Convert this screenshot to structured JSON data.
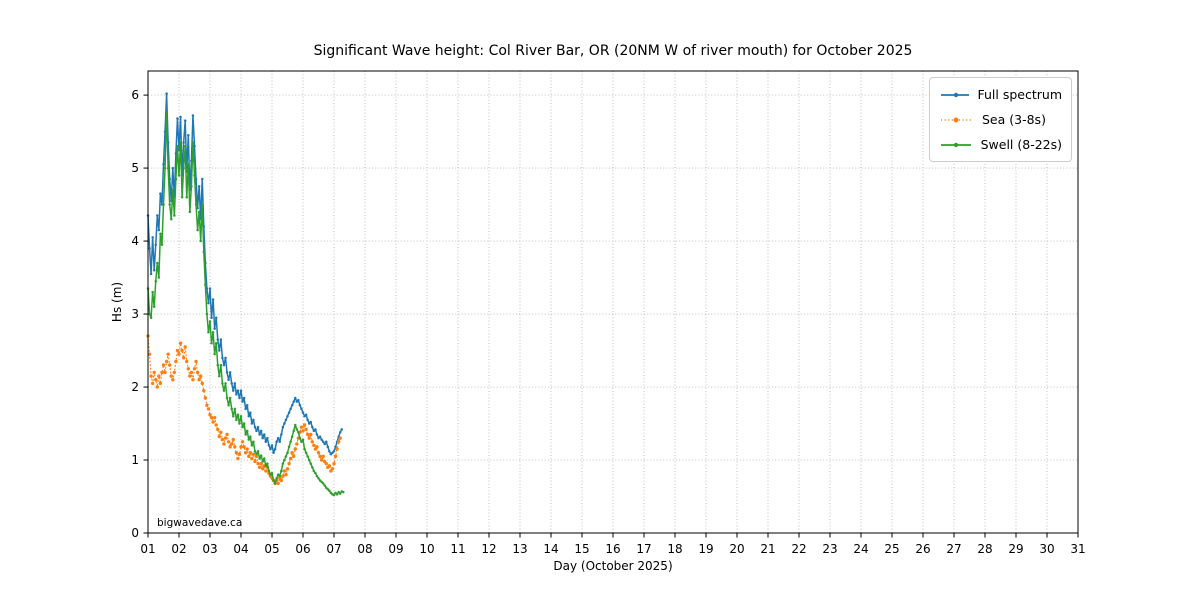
{
  "figure": {
    "watermark": "bigwavedave.ca"
  },
  "chart_data": {
    "type": "line",
    "title": "Significant Wave height: Col River Bar, OR (20NM W of river mouth) for October 2025",
    "xlabel": "Day (October 2025)",
    "ylabel": "Hs (m)",
    "xlim": [
      1,
      31
    ],
    "ylim": [
      0,
      6.33
    ],
    "x_tick_labels": [
      "01",
      "02",
      "03",
      "04",
      "05",
      "06",
      "07",
      "08",
      "09",
      "10",
      "11",
      "12",
      "13",
      "14",
      "15",
      "16",
      "17",
      "18",
      "19",
      "20",
      "21",
      "22",
      "23",
      "24",
      "25",
      "26",
      "27",
      "28",
      "29",
      "30",
      "31"
    ],
    "y_tick_labels": [
      "0",
      "1",
      "2",
      "3",
      "4",
      "5",
      "6"
    ],
    "grid": "dotted",
    "grid_color": "#b8b8b8",
    "legend_position": "upper right",
    "series": [
      {
        "name": "Full spectrum",
        "color": "#1f77b4",
        "style": "solid",
        "marker": "dot",
        "start_day": 1.0,
        "step_days": 0.05,
        "values": [
          4.35,
          3.9,
          3.55,
          4.05,
          3.6,
          3.95,
          4.35,
          4.15,
          4.65,
          4.5,
          5.05,
          5.5,
          6.02,
          5.35,
          4.85,
          4.55,
          5.0,
          4.6,
          5.2,
          5.68,
          5.25,
          5.7,
          4.9,
          5.35,
          5.65,
          4.95,
          5.45,
          4.7,
          5.1,
          5.72,
          5.3,
          4.85,
          4.45,
          4.75,
          4.3,
          4.85,
          4.2,
          3.7,
          3.35,
          3.15,
          3.35,
          2.95,
          3.2,
          2.8,
          2.95,
          2.65,
          2.5,
          2.65,
          2.4,
          2.3,
          2.4,
          2.2,
          2.1,
          2.2,
          2.05,
          1.95,
          2.05,
          1.9,
          1.95,
          1.85,
          1.95,
          1.8,
          1.85,
          1.7,
          1.75,
          1.6,
          1.65,
          1.5,
          1.55,
          1.45,
          1.4,
          1.45,
          1.35,
          1.4,
          1.3,
          1.35,
          1.25,
          1.3,
          1.2,
          1.15,
          1.2,
          1.1,
          1.15,
          1.25,
          1.3,
          1.25,
          1.35,
          1.45,
          1.5,
          1.55,
          1.6,
          1.65,
          1.7,
          1.75,
          1.8,
          1.85,
          1.8,
          1.82,
          1.75,
          1.7,
          1.65,
          1.6,
          1.62,
          1.55,
          1.5,
          1.52,
          1.45,
          1.4,
          1.42,
          1.35,
          1.3,
          1.32,
          1.28,
          1.25,
          1.22,
          1.25,
          1.18,
          1.12,
          1.08,
          1.1,
          1.12,
          1.18,
          1.25,
          1.32,
          1.38,
          1.42
        ]
      },
      {
        "name": "Sea (3-8s)",
        "color": "#ff7f0e",
        "style": "dotted",
        "marker": "dot",
        "start_day": 1.0,
        "step_days": 0.05,
        "values": [
          2.7,
          2.45,
          2.15,
          2.05,
          2.2,
          2.1,
          2.0,
          2.15,
          2.05,
          2.2,
          2.3,
          2.2,
          2.35,
          2.45,
          2.3,
          2.15,
          2.1,
          2.2,
          2.35,
          2.5,
          2.45,
          2.6,
          2.5,
          2.4,
          2.55,
          2.35,
          2.25,
          2.15,
          2.2,
          2.1,
          2.25,
          2.35,
          2.2,
          2.1,
          2.15,
          2.05,
          1.95,
          1.85,
          1.75,
          1.7,
          1.62,
          1.58,
          1.52,
          1.58,
          1.48,
          1.42,
          1.32,
          1.38,
          1.28,
          1.22,
          1.3,
          1.35,
          1.25,
          1.18,
          1.22,
          1.28,
          1.18,
          1.1,
          1.02,
          1.08,
          1.18,
          1.25,
          1.18,
          1.1,
          1.15,
          1.05,
          1.1,
          1.02,
          1.08,
          0.98,
          1.05,
          0.95,
          0.9,
          0.95,
          0.88,
          0.92,
          0.85,
          0.9,
          0.82,
          0.78,
          0.75,
          0.72,
          0.68,
          0.72,
          0.68,
          0.75,
          0.72,
          0.78,
          0.85,
          0.8,
          0.88,
          0.95,
          1.02,
          1.1,
          1.05,
          1.15,
          1.22,
          1.3,
          1.38,
          1.45,
          1.4,
          1.48,
          1.42,
          1.35,
          1.3,
          1.35,
          1.25,
          1.2,
          1.15,
          1.18,
          1.1,
          1.05,
          1.0,
          1.05,
          0.98,
          0.95,
          0.9,
          0.92,
          0.85,
          0.88,
          0.95,
          1.05,
          1.15,
          1.25,
          1.3
        ]
      },
      {
        "name": "Swell (8-22s)",
        "color": "#2ca02c",
        "style": "solid",
        "marker": "dot",
        "start_day": 1.0,
        "step_days": 0.05,
        "values": [
          3.35,
          3.0,
          2.95,
          3.3,
          3.1,
          3.45,
          3.7,
          3.5,
          4.1,
          3.95,
          4.5,
          5.0,
          5.75,
          5.0,
          4.5,
          4.3,
          4.7,
          4.35,
          4.85,
          5.3,
          4.9,
          5.35,
          4.6,
          5.0,
          5.3,
          4.6,
          5.05,
          4.4,
          4.75,
          5.35,
          4.9,
          4.5,
          4.15,
          4.4,
          4.0,
          4.5,
          3.85,
          3.4,
          3.0,
          2.75,
          2.9,
          2.6,
          2.75,
          2.45,
          2.6,
          2.3,
          2.15,
          2.3,
          2.05,
          1.95,
          2.05,
          1.85,
          1.75,
          1.85,
          1.7,
          1.6,
          1.7,
          1.55,
          1.62,
          1.5,
          1.6,
          1.45,
          1.5,
          1.35,
          1.4,
          1.28,
          1.32,
          1.2,
          1.25,
          1.12,
          1.08,
          1.12,
          1.02,
          1.06,
          0.98,
          1.02,
          0.92,
          0.95,
          0.85,
          0.8,
          0.82,
          0.72,
          0.68,
          0.75,
          0.8,
          0.78,
          0.85,
          0.95,
          1.0,
          1.05,
          1.1,
          1.18,
          1.25,
          1.32,
          1.4,
          1.48,
          1.42,
          1.38,
          1.3,
          1.25,
          1.28,
          1.15,
          1.1,
          1.05,
          1.0,
          0.95,
          0.9,
          0.85,
          0.82,
          0.78,
          0.75,
          0.72,
          0.7,
          0.68,
          0.65,
          0.62,
          0.6,
          0.58,
          0.55,
          0.53,
          0.52,
          0.55,
          0.53,
          0.56,
          0.54,
          0.57,
          0.56
        ]
      }
    ]
  }
}
